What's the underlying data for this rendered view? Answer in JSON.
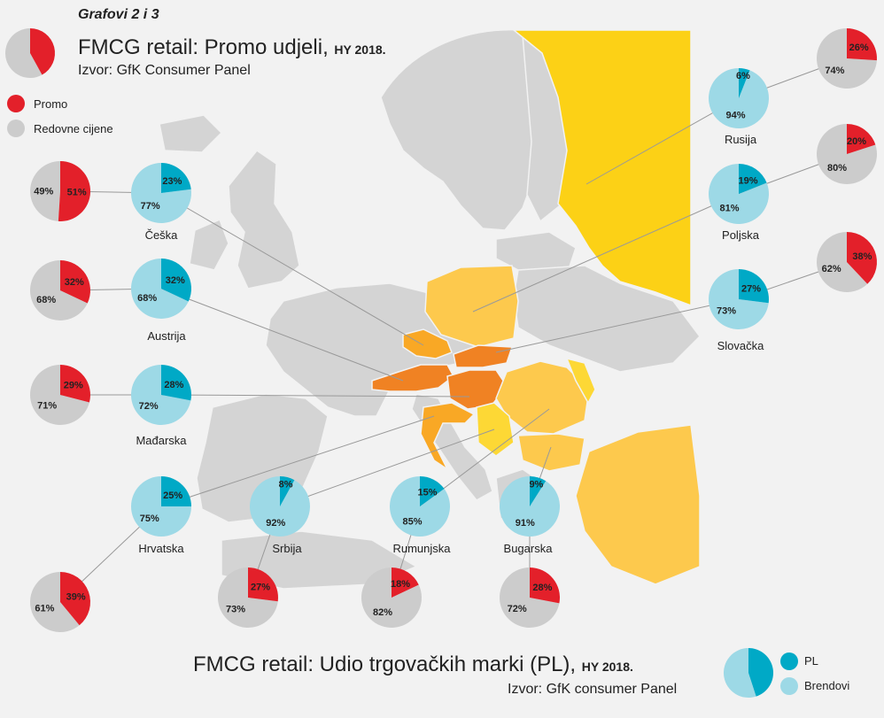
{
  "header": {
    "kicker": "Grafovi 2 i 3",
    "title_main": "FMCG retail: Promo udjeli, ",
    "title_suffix": "HY 2018.",
    "source": "Izvor: GfK Consumer Panel"
  },
  "footer": {
    "title_main": "FMCG retail: Udio trgovačkih marki (PL), ",
    "title_suffix": "HY 2018.",
    "source": "Izvor: GfK consumer Panel"
  },
  "legend_promo": {
    "items": [
      {
        "label": "Promo",
        "color": "#e3202a"
      },
      {
        "label": "Redovne cijene",
        "color": "#cccccc"
      }
    ]
  },
  "legend_pl": {
    "items": [
      {
        "label": "PL",
        "color": "#00a9c6"
      },
      {
        "label": "Brendovi",
        "color": "#9dd9e6"
      }
    ]
  },
  "colors": {
    "promo": "#e3202a",
    "regular": "#cccccc",
    "pl": "#00a9c6",
    "brand": "#9dd9e6",
    "map_land": "#d4d4d4",
    "map_border": "#f2f2f2",
    "map_russia": "#fcd116",
    "map_light_orange": "#fdc94d",
    "map_orange": "#f9a825",
    "map_dark_orange": "#f08223",
    "map_yellow": "#fdd835",
    "map_ink": "#999999"
  },
  "chart_data": [
    {
      "type": "pie",
      "title": "FMCG retail: Promo udjeli, HY 2018.",
      "series_labels": [
        "Promo",
        "Redovne cijene"
      ],
      "countries": [
        {
          "country": "Češka",
          "promo": 51,
          "regular": 49
        },
        {
          "country": "Austrija",
          "promo": 32,
          "regular": 68
        },
        {
          "country": "Mađarska",
          "promo": 29,
          "regular": 71
        },
        {
          "country": "Hrvatska",
          "promo": 39,
          "regular": 61
        },
        {
          "country": "Srbija",
          "promo": 27,
          "regular": 73
        },
        {
          "country": "Rumunjska",
          "promo": 18,
          "regular": 82
        },
        {
          "country": "Bugarska",
          "promo": 28,
          "regular": 72
        },
        {
          "country": "Rusija",
          "promo": 26,
          "regular": 74
        },
        {
          "country": "Poljska",
          "promo": 20,
          "regular": 80
        },
        {
          "country": "Slovačka",
          "promo": 38,
          "regular": 62
        }
      ]
    },
    {
      "type": "pie",
      "title": "FMCG retail: Udio trgovačkih marki (PL), HY 2018.",
      "series_labels": [
        "PL",
        "Brendovi"
      ],
      "countries": [
        {
          "country": "Češka",
          "pl": 23,
          "brands": 77
        },
        {
          "country": "Austrija",
          "pl": 32,
          "brands": 68
        },
        {
          "country": "Mađarska",
          "pl": 28,
          "brands": 72
        },
        {
          "country": "Hrvatska",
          "pl": 25,
          "brands": 75
        },
        {
          "country": "Srbija",
          "pl": 8,
          "brands": 92
        },
        {
          "country": "Rumunjska",
          "pl": 15,
          "brands": 85
        },
        {
          "country": "Bugarska",
          "pl": 9,
          "brands": 91
        },
        {
          "country": "Rusija",
          "pl": 6,
          "brands": 94
        },
        {
          "country": "Poljska",
          "pl": 19,
          "brands": 81
        },
        {
          "country": "Slovačka",
          "pl": 27,
          "brands": 73
        }
      ]
    }
  ]
}
